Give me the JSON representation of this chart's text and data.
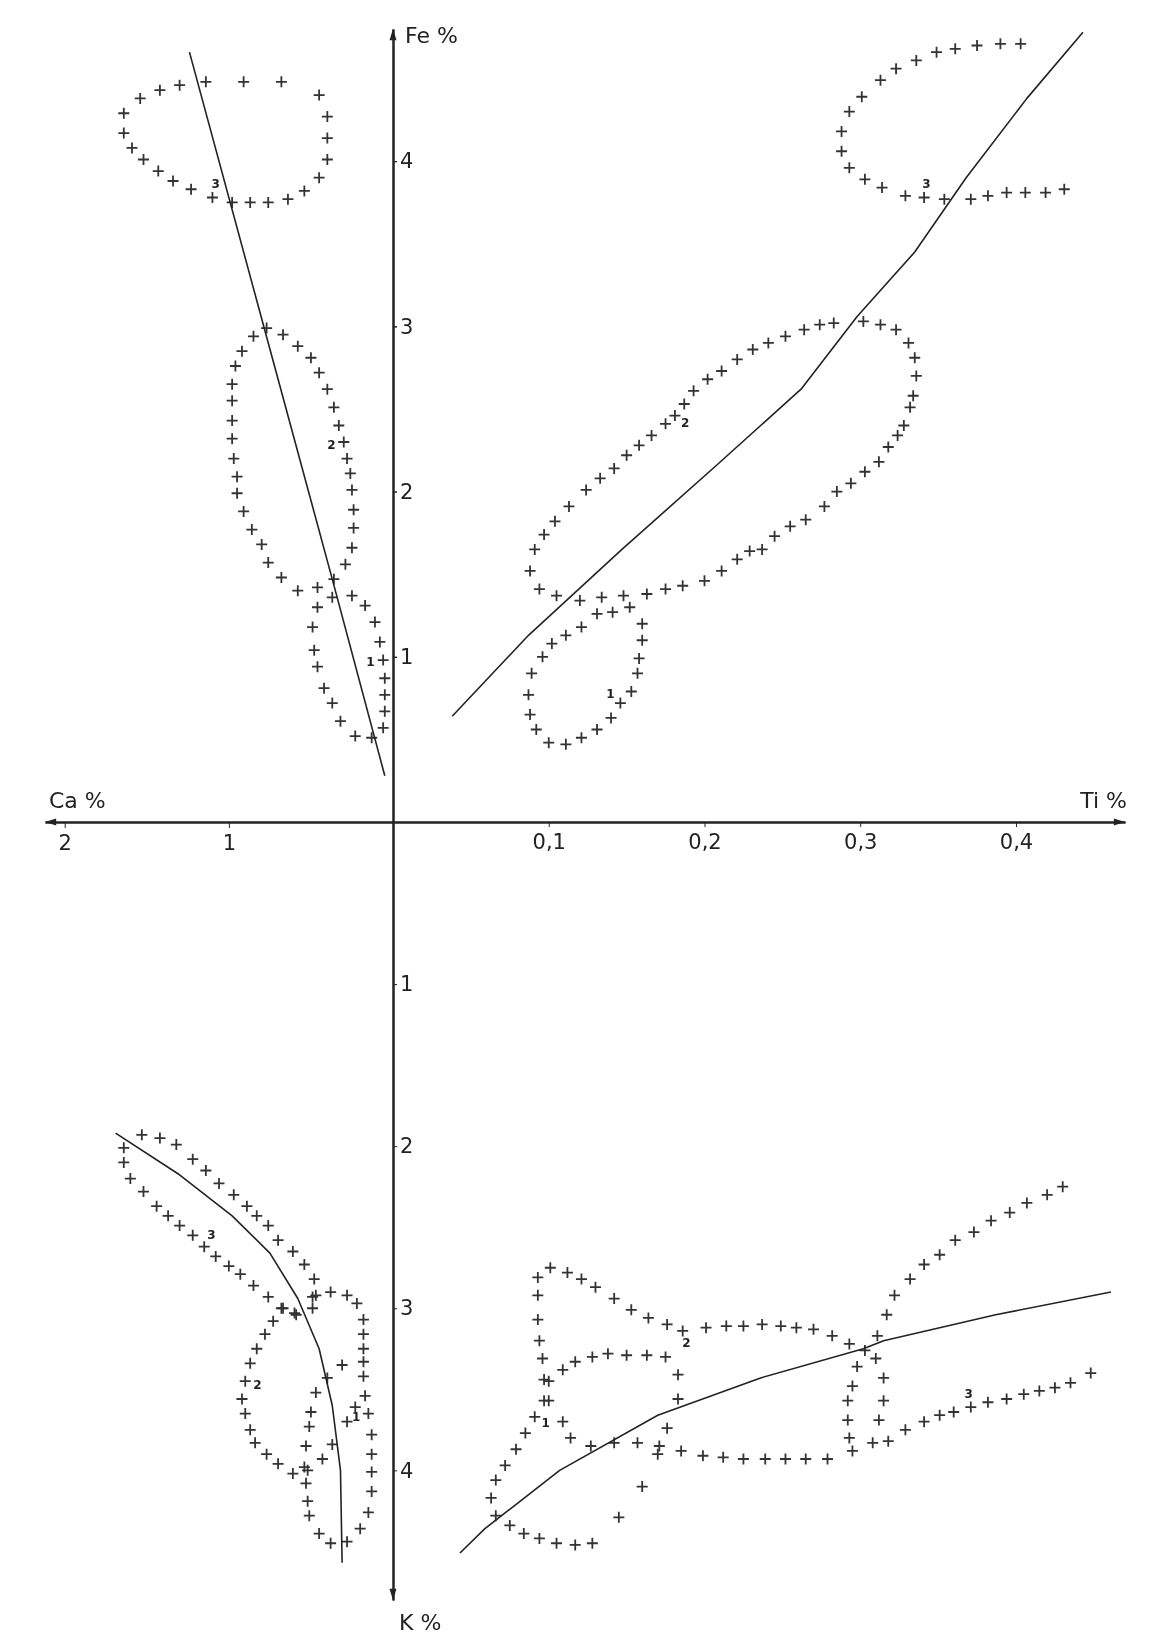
{
  "chart_data": [
    {
      "type": "scatter",
      "xlabel": "Ca %",
      "ylabel": "Fe %",
      "xlim": [
        2.12,
        0
      ],
      "ylim": [
        0,
        4.8
      ],
      "xticks": [
        2,
        1
      ],
      "yticks": [
        1,
        2,
        3,
        4
      ],
      "marker": "cross",
      "grid": false,
      "series": [
        {
          "name": "3",
          "color": "#333333",
          "x": [
            1.64,
            1.64,
            1.54,
            1.42,
            1.3,
            1.14,
            0.91,
            0.68,
            0.45,
            0.4,
            0.4,
            0.4,
            0.45,
            0.54,
            0.64,
            0.76,
            0.87,
            0.98,
            1.1,
            1.23,
            1.34,
            1.43,
            1.52,
            1.59
          ],
          "values": [
            4.17,
            4.29,
            4.38,
            4.43,
            4.46,
            4.48,
            4.48,
            4.48,
            4.4,
            4.27,
            4.14,
            4.01,
            3.9,
            3.82,
            3.77,
            3.75,
            3.75,
            3.75,
            3.78,
            3.83,
            3.88,
            3.94,
            4.01,
            4.08
          ]
        },
        {
          "name": "2",
          "color": "#333333",
          "x": [
            0.77,
            0.85,
            0.92,
            0.96,
            0.98,
            0.98,
            0.98,
            0.98,
            0.97,
            0.95,
            0.95,
            0.91,
            0.86,
            0.8,
            0.76,
            0.68,
            0.58,
            0.46,
            0.36,
            0.29,
            0.25,
            0.24,
            0.24,
            0.25,
            0.26,
            0.28,
            0.3,
            0.33,
            0.36,
            0.4,
            0.45,
            0.5,
            0.58,
            0.67
          ],
          "values": [
            2.99,
            2.94,
            2.85,
            2.76,
            2.65,
            2.55,
            2.43,
            2.32,
            2.2,
            2.09,
            1.99,
            1.88,
            1.77,
            1.68,
            1.57,
            1.48,
            1.4,
            1.42,
            1.47,
            1.56,
            1.66,
            1.78,
            1.89,
            2.01,
            2.11,
            2.2,
            2.3,
            2.4,
            2.51,
            2.62,
            2.72,
            2.81,
            2.88,
            2.95
          ]
        },
        {
          "name": "1",
          "color": "#333333",
          "x": [
            0.46,
            0.49,
            0.48,
            0.46,
            0.42,
            0.37,
            0.32,
            0.23,
            0.13,
            0.06,
            0.05,
            0.05,
            0.05,
            0.06,
            0.08,
            0.11,
            0.17,
            0.25,
            0.37
          ],
          "values": [
            1.3,
            1.18,
            1.04,
            0.94,
            0.81,
            0.72,
            0.61,
            0.52,
            0.51,
            0.57,
            0.67,
            0.77,
            0.87,
            0.98,
            1.09,
            1.21,
            1.31,
            1.37,
            1.36
          ]
        },
        {
          "type": "line",
          "marker": "none",
          "color": "#222222",
          "x": [
            1.24,
            0.37,
            0.05
          ],
          "values": [
            4.66,
            1.47,
            0.28
          ]
        }
      ]
    },
    {
      "type": "scatter",
      "xlabel": "Ti %",
      "xlim": [
        0,
        0.47
      ],
      "ylim": [
        0,
        4.8
      ],
      "xticks": [
        {
          "value": 0.1,
          "label": "0,1"
        },
        {
          "value": 0.2,
          "label": "0,2"
        },
        {
          "value": 0.3,
          "label": "0,3"
        },
        {
          "value": 0.4,
          "label": "0,4"
        }
      ],
      "yticks": [
        1,
        2,
        3,
        4
      ],
      "tick_labels": "x",
      "marker": "cross",
      "grid": false,
      "series": [
        {
          "name": "3",
          "color": "#333333",
          "x": [
            0.403,
            0.39,
            0.375,
            0.361,
            0.349,
            0.336,
            0.323,
            0.313,
            0.301,
            0.293,
            0.288,
            0.288,
            0.293,
            0.303,
            0.314,
            0.329,
            0.341,
            0.354,
            0.371,
            0.382,
            0.394,
            0.406,
            0.419,
            0.431
          ],
          "values": [
            4.71,
            4.71,
            4.7,
            4.68,
            4.66,
            4.61,
            4.56,
            4.49,
            4.39,
            4.3,
            4.18,
            4.06,
            3.96,
            3.89,
            3.84,
            3.79,
            3.78,
            3.77,
            3.77,
            3.79,
            3.81,
            3.81,
            3.81,
            3.83
          ]
        },
        {
          "name": "2",
          "color": "#333333",
          "x": [
            0.088,
            0.091,
            0.097,
            0.104,
            0.113,
            0.124,
            0.133,
            0.142,
            0.15,
            0.158,
            0.166,
            0.175,
            0.181,
            0.187,
            0.193,
            0.202,
            0.211,
            0.221,
            0.231,
            0.241,
            0.252,
            0.264,
            0.274,
            0.283,
            0.302,
            0.313,
            0.323,
            0.331,
            0.335,
            0.336,
            0.334,
            0.332,
            0.328,
            0.324,
            0.318,
            0.312,
            0.303,
            0.294,
            0.285,
            0.277,
            0.265,
            0.255,
            0.245,
            0.237,
            0.229,
            0.221,
            0.211,
            0.2,
            0.186,
            0.175,
            0.163,
            0.148,
            0.134,
            0.12,
            0.105,
            0.094
          ],
          "values": [
            1.52,
            1.65,
            1.74,
            1.82,
            1.91,
            2.01,
            2.08,
            2.14,
            2.22,
            2.28,
            2.34,
            2.41,
            2.46,
            2.53,
            2.61,
            2.68,
            2.73,
            2.8,
            2.86,
            2.9,
            2.94,
            2.98,
            3.01,
            3.02,
            3.03,
            3.01,
            2.98,
            2.9,
            2.81,
            2.7,
            2.58,
            2.51,
            2.4,
            2.34,
            2.27,
            2.18,
            2.12,
            2.05,
            2.0,
            1.91,
            1.83,
            1.79,
            1.73,
            1.65,
            1.64,
            1.59,
            1.52,
            1.46,
            1.43,
            1.41,
            1.38,
            1.37,
            1.36,
            1.34,
            1.37,
            1.41
          ]
        },
        {
          "name": "1",
          "color": "#333333",
          "x": [
            0.089,
            0.087,
            0.088,
            0.092,
            0.1,
            0.111,
            0.121,
            0.131,
            0.14,
            0.146,
            0.153,
            0.157,
            0.158,
            0.16,
            0.16,
            0.152,
            0.141,
            0.131,
            0.121,
            0.111,
            0.102,
            0.096
          ],
          "values": [
            0.9,
            0.77,
            0.65,
            0.56,
            0.48,
            0.47,
            0.51,
            0.56,
            0.63,
            0.72,
            0.79,
            0.9,
            0.99,
            1.1,
            1.2,
            1.3,
            1.27,
            1.26,
            1.18,
            1.13,
            1.08,
            1.0
          ]
        },
        {
          "type": "line",
          "marker": "none",
          "color": "#222222",
          "x": [
            0.038,
            0.087,
            0.147,
            0.209,
            0.262,
            0.298,
            0.335,
            0.368,
            0.407,
            0.443
          ],
          "values": [
            0.64,
            1.13,
            1.65,
            2.17,
            2.62,
            3.06,
            3.45,
            3.9,
            4.38,
            4.78
          ]
        }
      ]
    },
    {
      "type": "scatter",
      "ylabel": "K %",
      "xlim": [
        2.12,
        0
      ],
      "ylim": [
        4.8,
        0
      ],
      "yticks": [
        1,
        2,
        3,
        4
      ],
      "tick_labels": "y",
      "marker": "cross",
      "grid": false,
      "series": [
        {
          "name": "3",
          "color": "#333333",
          "x": [
            1.53,
            1.42,
            1.32,
            1.22,
            1.14,
            1.06,
            0.97,
            0.89,
            0.83,
            0.76,
            0.7,
            0.61,
            0.54,
            0.48,
            0.47,
            0.59,
            0.67,
            0.76,
            0.85,
            0.93,
            1.0,
            1.08,
            1.15,
            1.22,
            1.3,
            1.37,
            1.44,
            1.52,
            1.6,
            1.64,
            1.64
          ],
          "values": [
            1.93,
            1.95,
            1.99,
            2.08,
            2.15,
            2.23,
            2.3,
            2.37,
            2.43,
            2.49,
            2.58,
            2.65,
            2.73,
            2.82,
            2.92,
            3.04,
            3.0,
            2.93,
            2.86,
            2.79,
            2.74,
            2.68,
            2.62,
            2.55,
            2.49,
            2.43,
            2.37,
            2.28,
            2.2,
            2.1,
            2.01
          ]
        },
        {
          "name": "2",
          "color": "#333333",
          "x": [
            0.68,
            0.73,
            0.78,
            0.83,
            0.87,
            0.9,
            0.92,
            0.9,
            0.87,
            0.84,
            0.77,
            0.7,
            0.61,
            0.52,
            0.43,
            0.37,
            0.28,
            0.23,
            0.31,
            0.49,
            0.6
          ],
          "values": [
            3.0,
            3.08,
            3.16,
            3.25,
            3.34,
            3.45,
            3.56,
            3.65,
            3.75,
            3.83,
            3.9,
            3.96,
            4.02,
            4.0,
            3.93,
            3.84,
            3.7,
            3.61,
            3.35,
            3.0,
            3.03
          ]
        },
        {
          "name": "1",
          "color": "#333333",
          "x": [
            0.49,
            0.38,
            0.28,
            0.22,
            0.18,
            0.18,
            0.18,
            0.18,
            0.18,
            0.17,
            0.15,
            0.13,
            0.13,
            0.13,
            0.13,
            0.15,
            0.2,
            0.28,
            0.38,
            0.45,
            0.51,
            0.52,
            0.53,
            0.54,
            0.53,
            0.51,
            0.5,
            0.47,
            0.4
          ],
          "values": [
            2.93,
            2.9,
            2.92,
            2.97,
            3.07,
            3.16,
            3.25,
            3.33,
            3.42,
            3.54,
            3.65,
            3.78,
            3.9,
            4.01,
            4.13,
            4.26,
            4.36,
            4.44,
            4.45,
            4.39,
            4.28,
            4.19,
            4.08,
            3.98,
            3.85,
            3.73,
            3.64,
            3.52,
            3.43
          ]
        },
        {
          "type": "line",
          "marker": "none",
          "color": "#222222",
          "x": [
            1.69,
            1.31,
            0.98,
            0.75,
            0.58,
            0.45,
            0.37,
            0.32,
            0.31
          ],
          "values": [
            1.92,
            2.17,
            2.43,
            2.66,
            2.94,
            3.25,
            3.6,
            4.0,
            4.57
          ]
        }
      ]
    },
    {
      "type": "scatter",
      "xlim": [
        0,
        0.47
      ],
      "ylim": [
        4.8,
        0
      ],
      "tick_labels": false,
      "marker": "cross",
      "grid": false,
      "series": [
        {
          "name": "1",
          "color": "#333333",
          "x": [
            0.063,
            0.066,
            0.072,
            0.079,
            0.085,
            0.091,
            0.097,
            0.1,
            0.109,
            0.117,
            0.128,
            0.138,
            0.15,
            0.163,
            0.175,
            0.183,
            0.183,
            0.176,
            0.17,
            0.16,
            0.145,
            0.128,
            0.117,
            0.105,
            0.094,
            0.084,
            0.075,
            0.066
          ],
          "values": [
            4.17,
            4.06,
            3.97,
            3.87,
            3.77,
            3.67,
            3.57,
            3.45,
            3.38,
            3.33,
            3.3,
            3.28,
            3.29,
            3.29,
            3.3,
            3.41,
            3.56,
            3.74,
            3.9,
            4.1,
            4.29,
            4.45,
            4.46,
            4.45,
            4.42,
            4.39,
            4.34,
            4.28
          ]
        },
        {
          "name": "2",
          "color": "#333333",
          "x": [
            0.093,
            0.101,
            0.112,
            0.121,
            0.13,
            0.142,
            0.153,
            0.164,
            0.176,
            0.186,
            0.201,
            0.214,
            0.225,
            0.237,
            0.249,
            0.259,
            0.27,
            0.282,
            0.293,
            0.303,
            0.298,
            0.295,
            0.292,
            0.292,
            0.293,
            0.295,
            0.279,
            0.265,
            0.252,
            0.239,
            0.225,
            0.212,
            0.199,
            0.185,
            0.171,
            0.157,
            0.142,
            0.127,
            0.114,
            0.109,
            0.1,
            0.097,
            0.096,
            0.094,
            0.093,
            0.093
          ],
          "values": [
            2.81,
            2.75,
            2.78,
            2.82,
            2.87,
            2.94,
            3.01,
            3.06,
            3.1,
            3.14,
            3.12,
            3.11,
            3.11,
            3.1,
            3.11,
            3.12,
            3.13,
            3.17,
            3.22,
            3.26,
            3.36,
            3.48,
            3.57,
            3.69,
            3.8,
            3.88,
            3.93,
            3.93,
            3.93,
            3.93,
            3.93,
            3.92,
            3.91,
            3.88,
            3.85,
            3.83,
            3.83,
            3.85,
            3.8,
            3.7,
            3.57,
            3.44,
            3.31,
            3.2,
            3.07,
            2.92
          ]
        },
        {
          "name": "3",
          "color": "#333333",
          "x": [
            0.43,
            0.42,
            0.407,
            0.396,
            0.384,
            0.373,
            0.361,
            0.351,
            0.341,
            0.332,
            0.322,
            0.317,
            0.311,
            0.31,
            0.315,
            0.315,
            0.312,
            0.308,
            0.318,
            0.329,
            0.341,
            0.351,
            0.36,
            0.371,
            0.382,
            0.394,
            0.405,
            0.415,
            0.425,
            0.435,
            0.448
          ],
          "values": [
            2.25,
            2.3,
            2.35,
            2.41,
            2.46,
            2.53,
            2.58,
            2.67,
            2.73,
            2.82,
            2.92,
            3.04,
            3.17,
            3.31,
            3.43,
            3.57,
            3.69,
            3.83,
            3.82,
            3.75,
            3.7,
            3.66,
            3.64,
            3.61,
            3.58,
            3.56,
            3.53,
            3.51,
            3.49,
            3.46,
            3.4
          ]
        },
        {
          "type": "line",
          "marker": "none",
          "color": "#222222",
          "x": [
            0.043,
            0.059,
            0.107,
            0.17,
            0.236,
            0.302,
            0.315,
            0.387,
            0.461
          ],
          "values": [
            4.51,
            4.36,
            4.0,
            3.66,
            3.43,
            3.25,
            3.2,
            3.04,
            2.9
          ]
        }
      ]
    }
  ]
}
